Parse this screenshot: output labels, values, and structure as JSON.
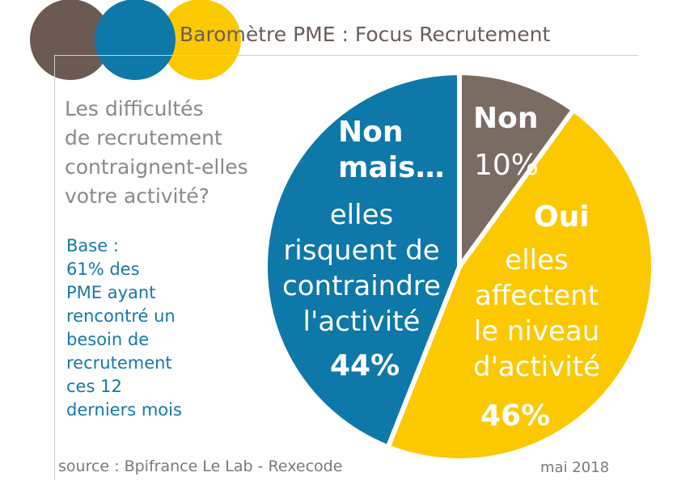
{
  "header": {
    "title": "Baromètre PME : Focus Recrutement",
    "logo_colors": [
      "#6b5a53",
      "#0e78a9",
      "#fcc900"
    ]
  },
  "question": {
    "lines": [
      "Les difficultés",
      "de recrutement",
      "contraignent-elles",
      "votre activité?"
    ]
  },
  "base_note": {
    "lines": [
      "Base :",
      "61% des",
      "PME ayant",
      "rencontré un",
      "besoin de",
      "recrutement",
      "ces 12",
      "derniers mois"
    ]
  },
  "footer": {
    "source": "source : Bpifrance Le Lab - Rexecode",
    "date": "mai 2018"
  },
  "chart_data": {
    "type": "pie",
    "slices": [
      {
        "label": "Non",
        "value": 10,
        "value_label": "10%",
        "color": "#7a6c63",
        "desc_lines": []
      },
      {
        "label": "Oui",
        "value": 46,
        "value_label": "46%",
        "color": "#fcc900",
        "desc_lines": [
          "elles",
          "affectent",
          "le niveau",
          "d'activité"
        ]
      },
      {
        "label_lines": [
          "Non",
          "mais…"
        ],
        "value": 44,
        "value_label": "44%",
        "color": "#0e78a9",
        "desc_lines": [
          "elles",
          "risquent de",
          "contraindre",
          "l'activité"
        ]
      }
    ]
  }
}
